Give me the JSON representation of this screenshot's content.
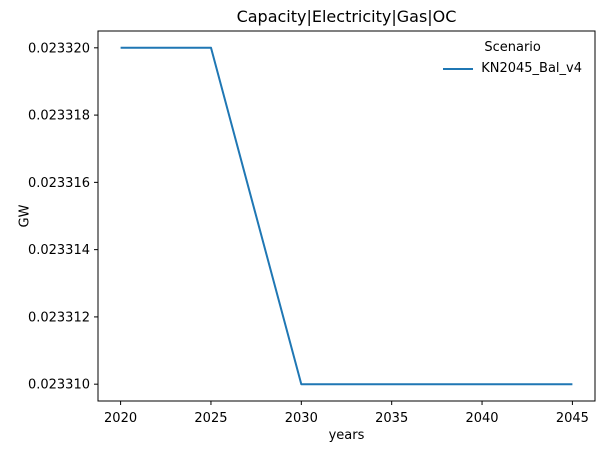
{
  "chart_data": {
    "type": "line",
    "title": "Capacity|Electricity|Gas|OC",
    "xlabel": "years",
    "ylabel": "GW",
    "x": [
      2020,
      2025,
      2030,
      2035,
      2040,
      2045
    ],
    "series": [
      {
        "name": "KN2045_Bal_v4",
        "values": [
          0.02332,
          0.02332,
          0.02331,
          0.02331,
          0.02331,
          0.02331
        ],
        "color": "#1f77b4"
      }
    ],
    "legend": {
      "title": "Scenario",
      "position": "upper right",
      "frame": false
    },
    "xlim": [
      2018.75,
      2046.25
    ],
    "ylim": [
      0.0233095,
      0.0233205
    ],
    "xticks": [
      2020,
      2025,
      2030,
      2035,
      2040,
      2045
    ],
    "xtick_labels": [
      "2020",
      "2025",
      "2030",
      "2035",
      "2040",
      "2045"
    ],
    "yticks": [
      0.02331,
      0.023312,
      0.023314,
      0.023316,
      0.023318,
      0.02332
    ],
    "ytick_labels": [
      "0.023310",
      "0.023312",
      "0.023314",
      "0.023316",
      "0.023318",
      "0.023320"
    ],
    "grid": false
  },
  "colors": {
    "background": "#ffffff",
    "text": "#000000",
    "spine": "#000000",
    "line": "#1f77b4"
  }
}
